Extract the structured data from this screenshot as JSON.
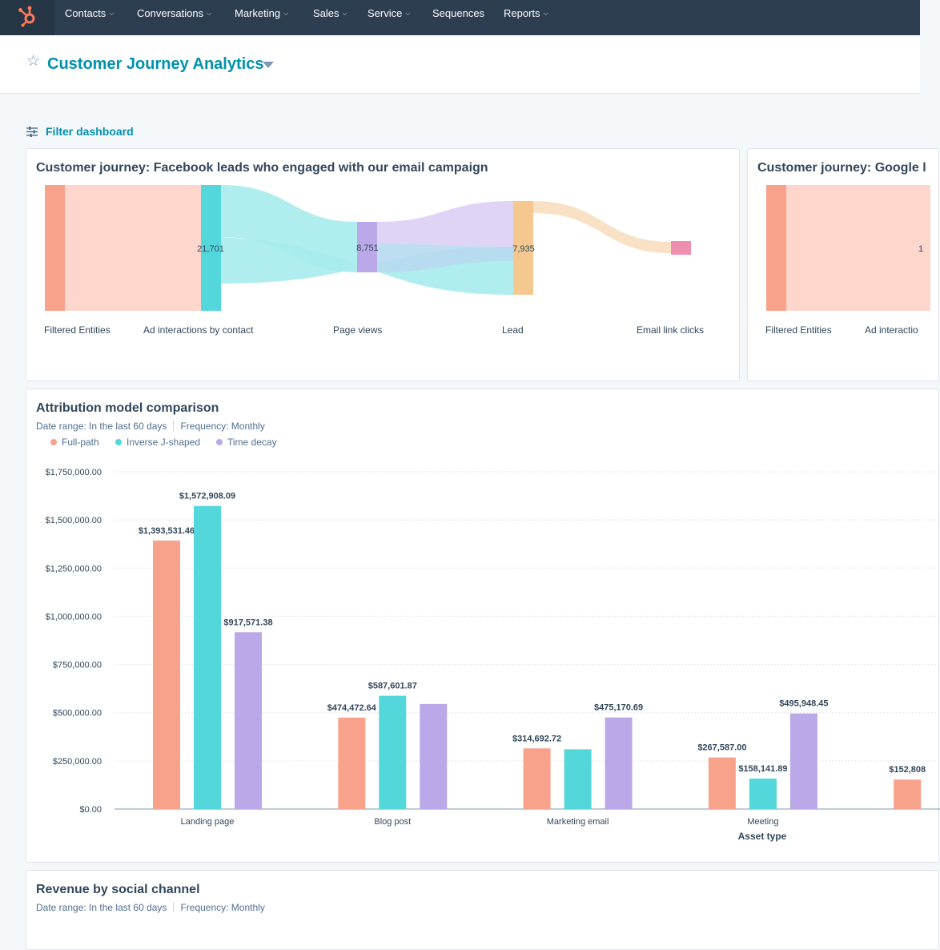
{
  "nav": {
    "items": [
      {
        "label": "Contacts",
        "chevron": true
      },
      {
        "label": "Conversations",
        "chevron": true
      },
      {
        "label": "Marketing",
        "chevron": true
      },
      {
        "label": "Sales",
        "chevron": true
      },
      {
        "label": "Service",
        "chevron": true
      },
      {
        "label": "Sequences",
        "chevron": false
      },
      {
        "label": "Reports",
        "chevron": true
      }
    ],
    "logo_icon": "hubspot-sprocket-icon"
  },
  "header": {
    "title": "Customer Journey Analytics",
    "favorite_icon": "star-outline-icon"
  },
  "filter": {
    "label": "Filter dashboard",
    "icon": "sliders-icon"
  },
  "journey1": {
    "title": "Customer journey: Facebook leads who engaged with our email campaign",
    "stages": [
      "Filtered Entities",
      "Ad interactions by contact",
      "Page views",
      "Lead",
      "Email link clicks"
    ],
    "node_values": [
      "21,701",
      "8,751",
      "7,935"
    ]
  },
  "journey2": {
    "title": "Customer journey: Google l",
    "stages": [
      "Filtered Entities",
      "Ad interactio"
    ],
    "node_values": [
      "1"
    ]
  },
  "attribution": {
    "title": "Attribution model comparison",
    "date_range": "Date range: In the last 60 days",
    "frequency": "Frequency: Monthly"
  },
  "revenue": {
    "title": "Revenue by social channel",
    "date_range": "Date range: In the last 60 days",
    "frequency": "Frequency: Monthly"
  },
  "colors": {
    "full_path": "#f8a28b",
    "inverse_j": "#54d7db",
    "time_decay": "#bba8e8",
    "accent": "#0091ae",
    "nav_bg": "#2d3e50",
    "logo_orange": "#ff7a59"
  },
  "chart_data": {
    "type": "bar",
    "title": "Attribution model comparison",
    "xlabel": "Asset type",
    "ylabel": "",
    "ylim": [
      0,
      1750000
    ],
    "y_ticks": [
      "$0.00",
      "$250,000.00",
      "$500,000.00",
      "$750,000.00",
      "$1,000,000.00",
      "$1,250,000.00",
      "$1,500,000.00",
      "$1,750,000.00"
    ],
    "y_tick_values": [
      0,
      250000,
      500000,
      750000,
      1000000,
      1250000,
      1500000,
      1750000
    ],
    "categories": [
      "Landing page",
      "Blog post",
      "Marketing email",
      "Meeting",
      ""
    ],
    "series": [
      {
        "name": "Full-path",
        "color": "#f8a28b",
        "values": [
          1393531.46,
          474472.64,
          314692.72,
          267587.0,
          152808
        ],
        "labels": [
          "$1,393,531.46",
          "$474,472.64",
          "$314,692.72",
          "$267,587.00",
          "$152,808"
        ]
      },
      {
        "name": "Inverse J-shaped",
        "color": "#54d7db",
        "values": [
          1572908.09,
          587601.87,
          310000,
          158141.89,
          null
        ],
        "labels": [
          "$1,572,908.09",
          "$587,601.87",
          "",
          "$158,141.89",
          ""
        ]
      },
      {
        "name": "Time decay",
        "color": "#bba8e8",
        "values": [
          917571.38,
          545000,
          475170.69,
          495948.45,
          null
        ],
        "labels": [
          "$917,571.38",
          "",
          "$475,170.69",
          "$495,948.45",
          ""
        ]
      }
    ]
  }
}
